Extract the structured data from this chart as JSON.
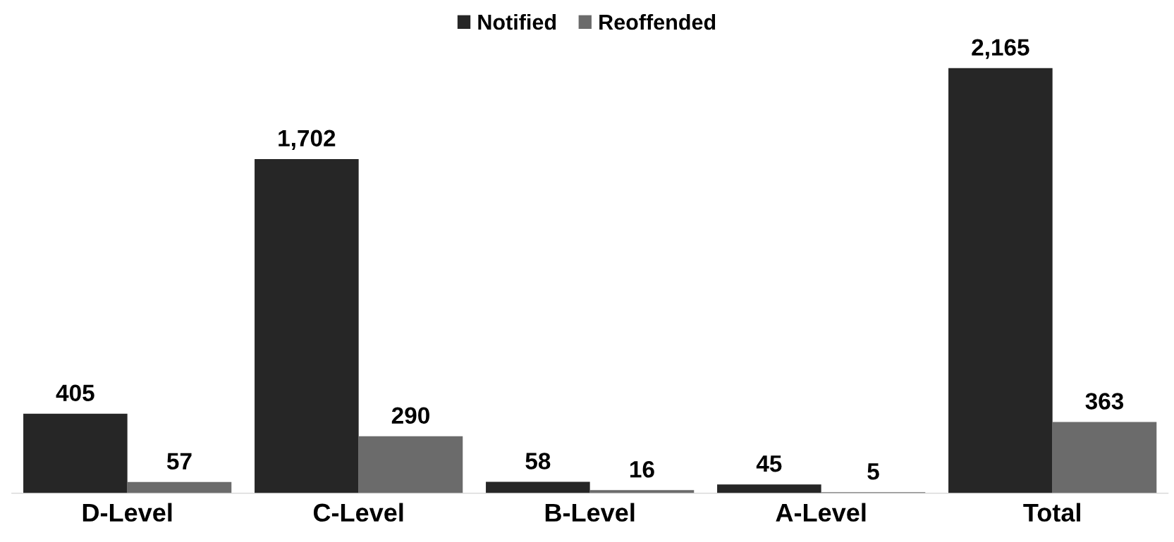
{
  "chart_data": {
    "type": "bar",
    "categories": [
      "D-Level",
      "C-Level",
      "B-Level",
      "A-Level",
      "Total"
    ],
    "series": [
      {
        "name": "Notified",
        "color": "#262626",
        "values": [
          405,
          1702,
          58,
          45,
          2165
        ],
        "value_labels": [
          "405",
          "1,702",
          "58",
          "45",
          "2,165"
        ]
      },
      {
        "name": "Reoffended",
        "color": "#6b6b6b",
        "values": [
          57,
          290,
          16,
          5,
          363
        ],
        "value_labels": [
          "57",
          "290",
          "16",
          "5",
          "363"
        ]
      }
    ],
    "legend": "top",
    "grid": false
  }
}
